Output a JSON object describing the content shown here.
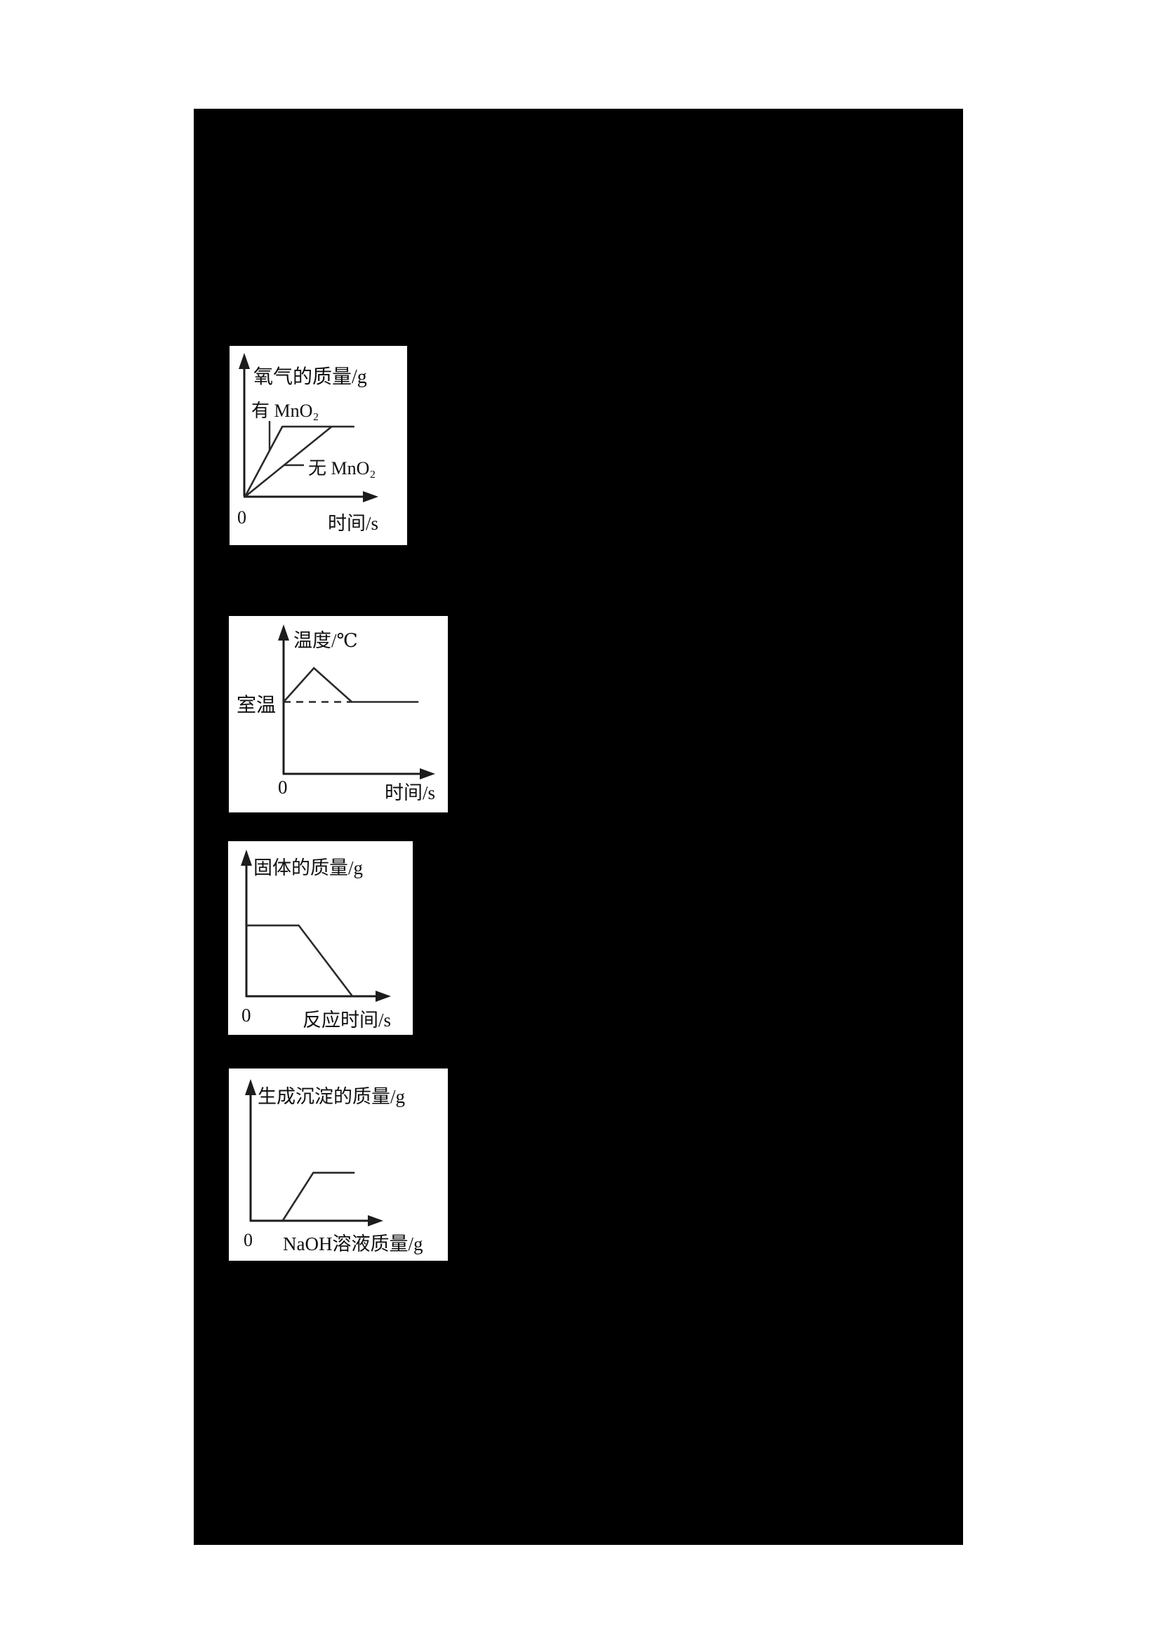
{
  "document": {
    "background_color": "#ffffff",
    "redaction_color": "#000000",
    "panel_background_color": "#ffffff",
    "ink_color": "#1c1c1c"
  },
  "chart_data": [
    {
      "id": "oxygen-mass-vs-time",
      "type": "line",
      "title": "",
      "ylabel": "氧气的质量/g",
      "xlabel": "时间/s",
      "origin_label": "0",
      "axes_numeric": false,
      "grid": false,
      "series": [
        {
          "name": "有 MnO₂",
          "points_norm": [
            [
              0,
              0
            ],
            [
              0.28,
              0.54
            ],
            [
              0.82,
              0.54
            ]
          ]
        },
        {
          "name": "无 MnO₂",
          "points_norm": [
            [
              0,
              0
            ],
            [
              0.65,
              0.54
            ]
          ]
        }
      ]
    },
    {
      "id": "temperature-vs-time",
      "type": "line",
      "title": "",
      "ylabel": "温度/℃",
      "xlabel": "时间/s",
      "origin_label": "0",
      "axes_numeric": false,
      "grid": false,
      "reference_line": {
        "label": "室温",
        "style": "dashed",
        "points_norm": [
          [
            0,
            0.51
          ],
          [
            0.45,
            0.51
          ]
        ]
      },
      "series": [
        {
          "points_norm": [
            [
              0,
              0.51
            ],
            [
              0.2,
              0.75
            ],
            [
              0.45,
              0.51
            ],
            [
              0.89,
              0.51
            ]
          ]
        }
      ]
    },
    {
      "id": "solid-mass-vs-reaction-time",
      "type": "line",
      "title": "",
      "ylabel": "固体的质量/g",
      "xlabel": "反应时间/s",
      "origin_label": "0",
      "axes_numeric": false,
      "grid": false,
      "series": [
        {
          "points_norm": [
            [
              0,
              0.51
            ],
            [
              0.36,
              0.51
            ],
            [
              0.73,
              0
            ]
          ]
        }
      ]
    },
    {
      "id": "precipitate-mass-vs-naoh-mass",
      "type": "line",
      "title": "",
      "ylabel": "生成沉淀的质量/g",
      "xlabel": "NaOH溶液质量/g",
      "origin_label": "0",
      "axes_numeric": false,
      "grid": false,
      "series": [
        {
          "points_norm": [
            [
              0.24,
              0
            ],
            [
              0.47,
              0.36
            ],
            [
              0.78,
              0.36
            ]
          ]
        }
      ]
    }
  ]
}
